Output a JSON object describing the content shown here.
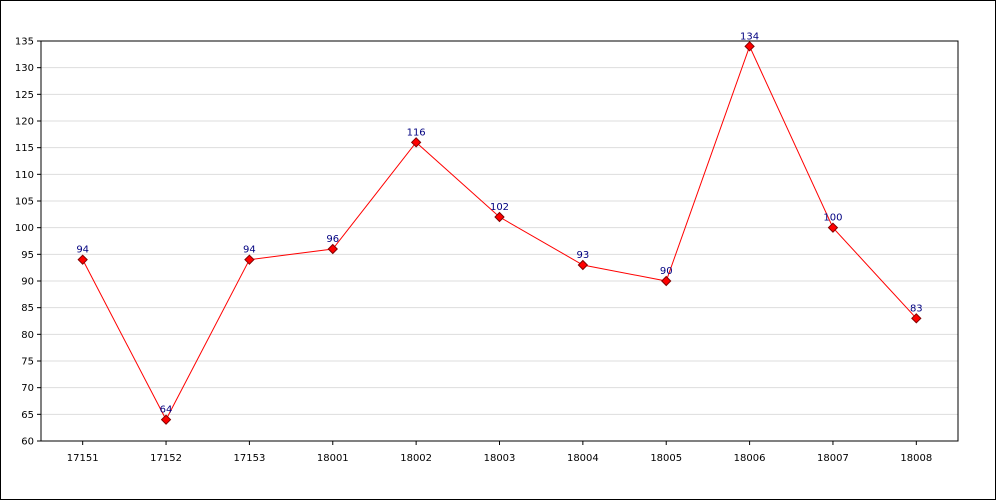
{
  "chart_data": {
    "type": "line",
    "title": "",
    "xlabel": "",
    "ylabel": "",
    "categories": [
      "17151",
      "17152",
      "17153",
      "18001",
      "18002",
      "18003",
      "18004",
      "18005",
      "18006",
      "18007",
      "18008"
    ],
    "series": [
      {
        "values": [
          94,
          64,
          94,
          96,
          116,
          102,
          93,
          90,
          134,
          100,
          83
        ]
      }
    ],
    "ylim": [
      60,
      135
    ],
    "yticks": [
      60,
      65,
      70,
      75,
      80,
      85,
      90,
      95,
      100,
      105,
      110,
      115,
      120,
      125,
      130,
      135
    ],
    "grid": "horizontal",
    "legend": "none",
    "colors": {
      "line": "#ff0000",
      "marker_fill": "#ff0000",
      "marker_stroke": "#800000",
      "data_label": "#000080",
      "grid": "#dddddd",
      "axis": "#000000"
    }
  }
}
